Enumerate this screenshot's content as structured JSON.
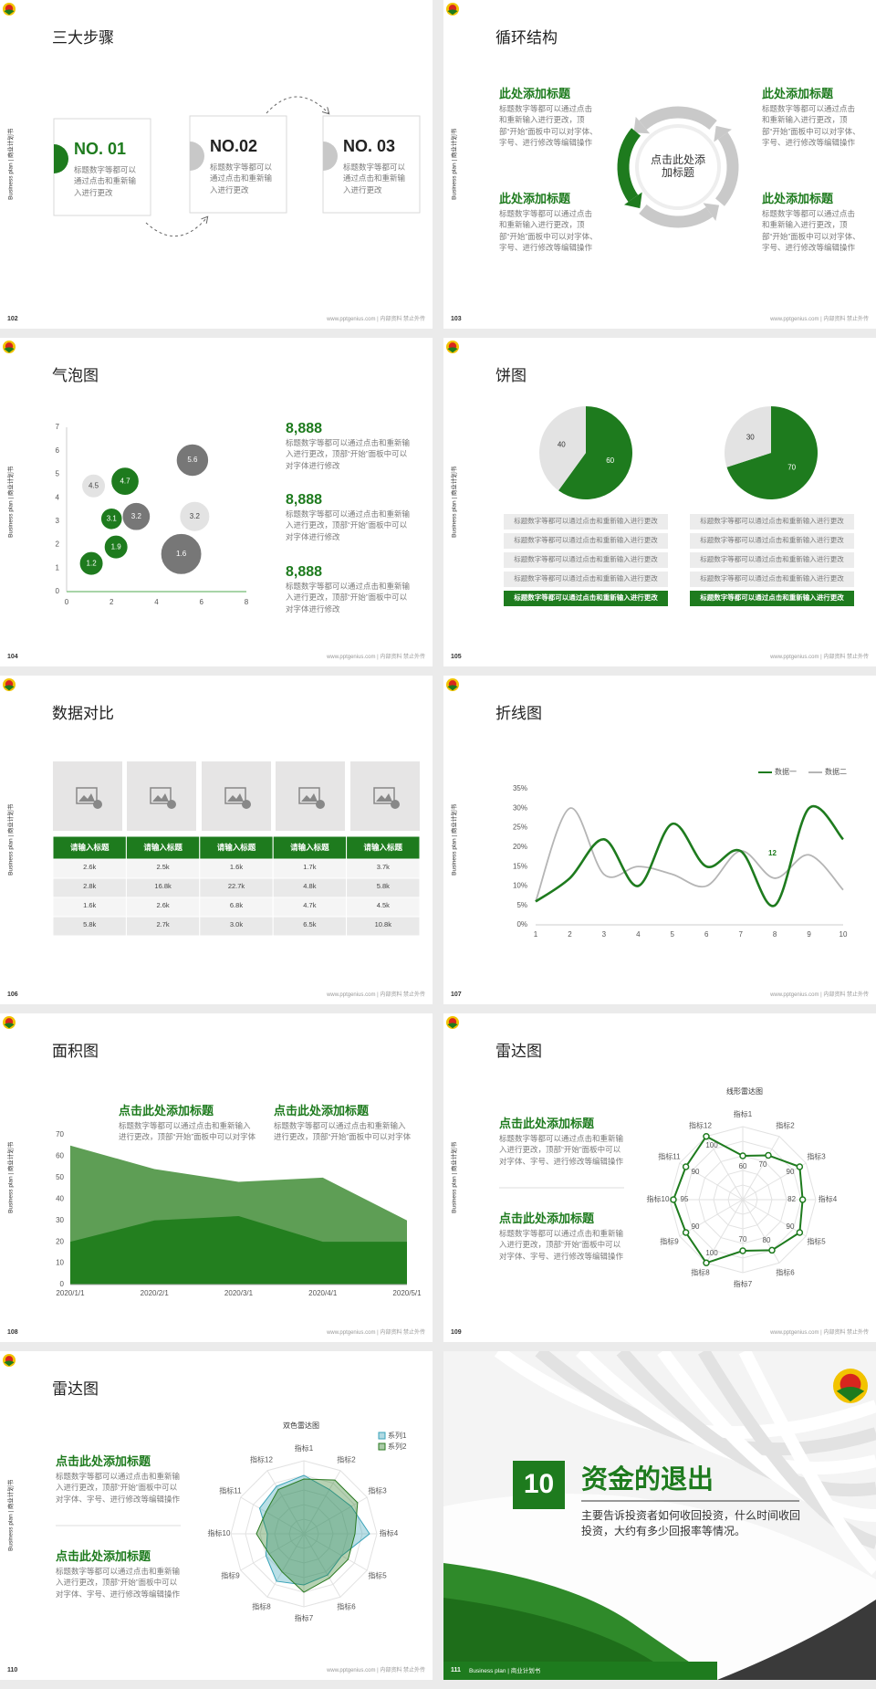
{
  "side_label": "Business plan | 商业计划书",
  "footer": "www.pptgenius.com | 内部资料 禁止外传",
  "slides": [
    {
      "page": "102",
      "title": "三大步骤",
      "steps": [
        {
          "label": "NO. 01",
          "text": "标题数字等都可以通过点击和重新输入进行更改"
        },
        {
          "label": "NO.02",
          "text": "标题数字等都可以通过点击和重新输入进行更改"
        },
        {
          "label": "NO. 03",
          "text": "标题数字等都可以通过点击和重新输入进行更改"
        }
      ]
    },
    {
      "page": "103",
      "title": "循环结构",
      "center": "点击此处添加标题",
      "blocks": [
        {
          "heading": "此处添加标题",
          "text": "标题数字等都可以通过点击和重新输入进行更改，顶部“开始”面板中可以对字体、字号、进行修改等编辑操作"
        },
        {
          "heading": "此处添加标题",
          "text": "标题数字等都可以通过点击和重新输入进行更改，顶部“开始”面板中可以对字体、字号、进行修改等编辑操作"
        },
        {
          "heading": "此处添加标题",
          "text": "标题数字等都可以通过点击和重新输入进行更改，顶部“开始”面板中可以对字体、字号、进行修改等编辑操作"
        },
        {
          "heading": "此处添加标题",
          "text": "标题数字等都可以通过点击和重新输入进行更改，顶部“开始”面板中可以对字体、字号、进行修改等编辑操作"
        }
      ]
    },
    {
      "page": "104",
      "title": "气泡图",
      "chart": {
        "type": "bubble",
        "x": [
          1.1,
          2.2,
          2.0,
          3.1,
          2.6,
          1.2,
          5.6,
          5.7,
          5.1
        ],
        "y": [
          1.2,
          1.9,
          3.1,
          3.2,
          4.7,
          4.5,
          5.6,
          3.2,
          1.6
        ],
        "size": [
          11,
          11,
          10,
          13,
          13,
          11,
          15,
          14,
          19
        ],
        "colors": [
          "#1e7b1e",
          "#1e7b1e",
          "#1e7b1e",
          "#777777",
          "#1e7b1e",
          "#e3e3e3",
          "#777777",
          "#e3e3e3",
          "#777777"
        ],
        "xlim": [
          0,
          8
        ],
        "xticks": [
          0,
          2,
          4,
          6,
          8
        ],
        "ylim": [
          0,
          7
        ],
        "yticks": [
          0,
          1,
          2,
          3,
          4,
          5,
          6,
          7
        ]
      },
      "stats": [
        {
          "value": "8,888",
          "text": "标题数字等都可以通过点击和重新输入进行更改，顶部“开始”面板中可以对字体进行修改"
        },
        {
          "value": "8,888",
          "text": "标题数字等都可以通过点击和重新输入进行更改，顶部“开始”面板中可以对字体进行修改"
        },
        {
          "value": "8,888",
          "text": "标题数字等都可以通过点击和重新输入进行更改，顶部“开始”面板中可以对字体进行修改"
        }
      ]
    },
    {
      "page": "105",
      "title": "饼图",
      "charts": [
        {
          "type": "pie",
          "values": [
            60,
            40
          ],
          "colors": [
            "#1e7b1e",
            "#e3e3e3"
          ]
        },
        {
          "type": "pie",
          "values": [
            70,
            30
          ],
          "colors": [
            "#1e7b1e",
            "#e3e3e3"
          ]
        }
      ],
      "lists": [
        [
          "标题数字等都可以通过点击和重新输入进行更改",
          "标题数字等都可以通过点击和重新输入进行更改",
          "标题数字等都可以通过点击和重新输入进行更改",
          "标题数字等都可以通过点击和重新输入进行更改",
          "标题数字等都可以通过点击和重新输入进行更改"
        ],
        [
          "标题数字等都可以通过点击和重新输入进行更改",
          "标题数字等都可以通过点击和重新输入进行更改",
          "标题数字等都可以通过点击和重新输入进行更改",
          "标题数字等都可以通过点击和重新输入进行更改",
          "标题数字等都可以通过点击和重新输入进行更改"
        ]
      ]
    },
    {
      "page": "106",
      "title": "数据对比",
      "table": {
        "header": [
          "请输入标题",
          "请输入标题",
          "请输入标题",
          "请输入标题",
          "请输入标题"
        ],
        "rows": [
          [
            "2.6k",
            "2.5k",
            "1.6k",
            "1.7k",
            "3.7k"
          ],
          [
            "2.8k",
            "16.8k",
            "22.7k",
            "4.8k",
            "5.8k"
          ],
          [
            "1.6k",
            "2.6k",
            "6.8k",
            "4.7k",
            "4.5k"
          ],
          [
            "5.8k",
            "2.7k",
            "3.0k",
            "6.5k",
            "10.8k"
          ]
        ]
      }
    },
    {
      "page": "107",
      "title": "折线图",
      "chart": {
        "type": "line",
        "x": [
          1,
          2,
          3,
          4,
          5,
          6,
          7,
          8,
          9,
          10
        ],
        "xlim": [
          1,
          10
        ],
        "xticks": [
          1,
          2,
          3,
          4,
          5,
          6,
          7,
          8,
          9,
          10
        ],
        "ylim": [
          0,
          35
        ],
        "yticks": [
          {
            "value": 0,
            "label": "0%"
          },
          {
            "value": 5,
            "label": "5%"
          },
          {
            "value": 10,
            "label": "10%"
          },
          {
            "value": 15,
            "label": "15%"
          },
          {
            "value": 20,
            "label": "20%"
          },
          {
            "value": 25,
            "label": "25%"
          },
          {
            "value": 30,
            "label": "30%"
          },
          {
            "value": 35,
            "label": "35%"
          }
        ],
        "legend": "top-right",
        "annotation": "12",
        "series": [
          {
            "name": "数据一",
            "color": "#1e7b1e",
            "values": [
              6,
              12,
              22,
              10,
              26,
              15,
              19,
              5,
              30,
              22
            ]
          },
          {
            "name": "数据二",
            "color": "#b5b5b5",
            "values": [
              6,
              30,
              13,
              15,
              13,
              10,
              19,
              12,
              18,
              9
            ]
          }
        ]
      }
    },
    {
      "page": "108",
      "title": "面积图",
      "blocks": [
        {
          "heading": "点击此处添加标题",
          "text": "标题数字等都可以通过点击和重新输入进行更改，顶部“开始”面板中可以对字体"
        },
        {
          "heading": "点击此处添加标题",
          "text": "标题数字等都可以通过点击和重新输入进行更改，顶部“开始”面板中可以对字体"
        }
      ],
      "chart": {
        "type": "area",
        "categories": [
          "2020/1/1",
          "2020/2/1",
          "2020/3/1",
          "2020/4/1",
          "2020/5/1"
        ],
        "ylim": [
          0,
          70
        ],
        "yticks": [
          0,
          10,
          20,
          30,
          40,
          50,
          60,
          70
        ],
        "series": [
          {
            "color": "#5e9e55",
            "values": [
              65,
              54,
              48,
              50,
              30
            ]
          },
          {
            "color": "#237f1f",
            "values": [
              20,
              30,
              32,
              20,
              20
            ]
          }
        ]
      }
    },
    {
      "page": "109",
      "title": "雷达图",
      "blocks": [
        {
          "heading": "点击此处添加标题",
          "text": "标题数字等都可以通过点击和重新输入进行更改，顶部“开始”面板中可以对字体、字号、进行修改等编辑操作"
        },
        {
          "heading": "点击此处添加标题",
          "text": "标题数字等都可以通过点击和重新输入进行更改，顶部“开始”面板中可以对字体、字号、进行修改等编辑操作"
        }
      ],
      "chart": {
        "type": "radar",
        "title": "线形雷达图",
        "data_labels": true,
        "categories": [
          "指标1",
          "指标2",
          "指标3",
          "指标4",
          "指标5",
          "指标6",
          "指标7",
          "指标8",
          "指标9",
          "指标10",
          "指标11",
          "指标12"
        ],
        "rlim": [
          0,
          100
        ],
        "color": "#1e7b1e",
        "values": [
          60,
          70,
          90,
          82,
          90,
          80,
          70,
          100,
          90,
          95,
          90,
          100
        ]
      }
    },
    {
      "page": "110",
      "title": "雷达图",
      "blocks": [
        {
          "heading": "点击此处添加标题",
          "text": "标题数字等都可以通过点击和重新输入进行更改，顶部“开始”面板中可以对字体、字号、进行修改等编辑操作"
        },
        {
          "heading": "点击此处添加标题",
          "text": "标题数字等都可以通过点击和重新输入进行更改，顶部“开始”面板中可以对字体、字号、进行修改等编辑操作"
        }
      ],
      "chart": {
        "type": "radar",
        "title": "双色雷达图",
        "legend": "top-right",
        "categories": [
          "指标1",
          "指标2",
          "指标3",
          "指标4",
          "指标5",
          "指标6",
          "指标7",
          "指标8",
          "指标9",
          "指标10",
          "指标11",
          "指标12"
        ],
        "rlim": [
          0,
          100
        ],
        "series": [
          {
            "name": "系列1",
            "color": "#3aa3b8",
            "values": [
              80,
              70,
              75,
              90,
              60,
              65,
              70,
              75,
              60,
              50,
              70,
              75
            ]
          },
          {
            "name": "系列2",
            "color": "#2a7a22",
            "values": [
              75,
              85,
              85,
              70,
              70,
              70,
              80,
              60,
              55,
              65,
              60,
              70
            ]
          }
        ]
      }
    },
    {
      "page": "111",
      "number": "10",
      "title": "资金的退出",
      "text": "主要告诉投资者如何收回投资，什么时间收回投资，大约有多少回报率等情况。"
    }
  ]
}
